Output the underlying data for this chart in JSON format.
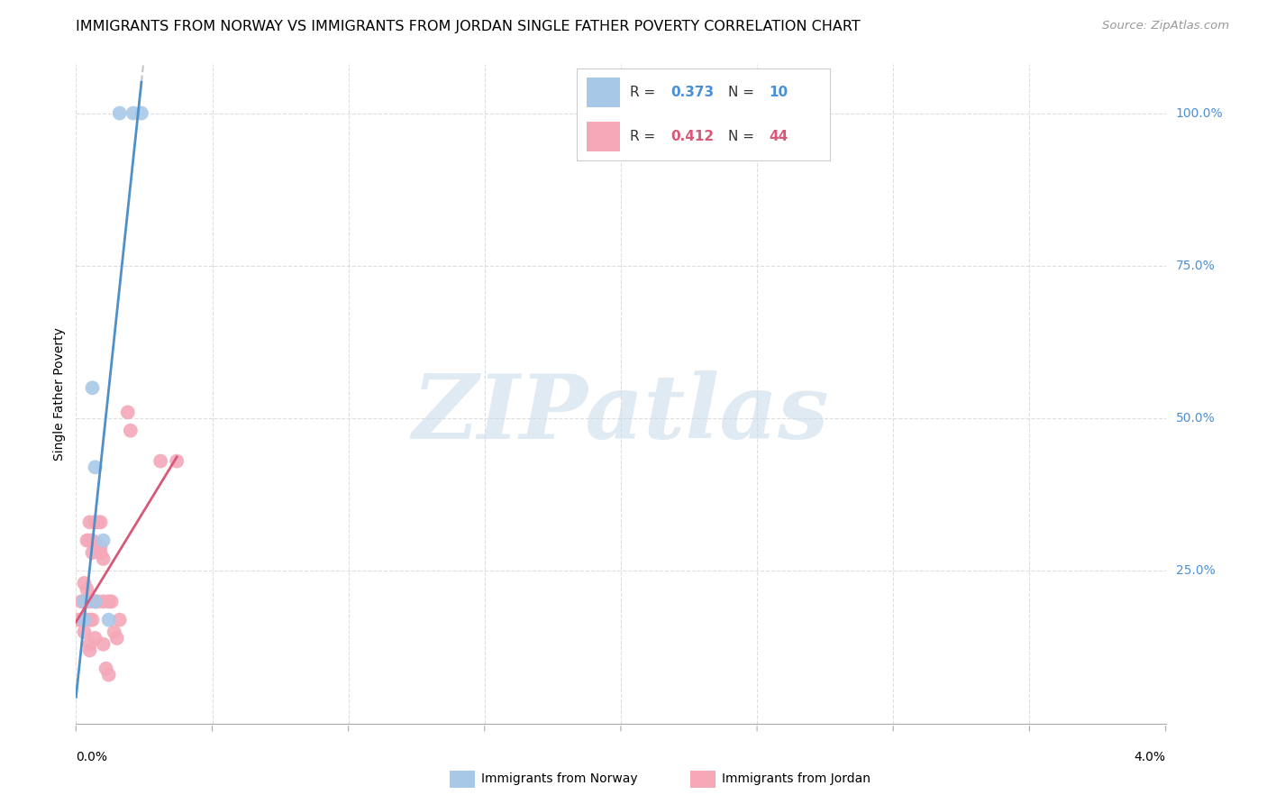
{
  "title": "IMMIGRANTS FROM NORWAY VS IMMIGRANTS FROM JORDAN SINGLE FATHER POVERTY CORRELATION CHART",
  "source": "Source: ZipAtlas.com",
  "ylabel": "Single Father Poverty",
  "norway_color": "#a8c8e8",
  "jordan_color": "#f4a8b8",
  "norway_line_color": "#5090c8",
  "jordan_line_color": "#d85878",
  "norway_points_x": [
    0.0003,
    0.0003,
    0.0006,
    0.0007,
    0.0007,
    0.001,
    0.0012,
    0.0016,
    0.0021,
    0.0024
  ],
  "norway_points_y": [
    0.17,
    0.2,
    0.55,
    0.42,
    0.2,
    0.3,
    0.17,
    1.0,
    1.0,
    1.0
  ],
  "jordan_points_x": [
    0.0001,
    0.0002,
    0.0002,
    0.0002,
    0.0003,
    0.0003,
    0.0003,
    0.0003,
    0.0003,
    0.0004,
    0.0004,
    0.0004,
    0.0004,
    0.0005,
    0.0005,
    0.0005,
    0.0005,
    0.0005,
    0.0005,
    0.0006,
    0.0006,
    0.0006,
    0.0007,
    0.0007,
    0.0007,
    0.0008,
    0.0008,
    0.0009,
    0.0009,
    0.0009,
    0.001,
    0.001,
    0.001,
    0.0011,
    0.0012,
    0.0012,
    0.0013,
    0.0014,
    0.0015,
    0.0016,
    0.0019,
    0.002,
    0.0031,
    0.0037
  ],
  "jordan_points_y": [
    0.17,
    0.17,
    0.2,
    0.17,
    0.15,
    0.2,
    0.23,
    0.17,
    0.17,
    0.22,
    0.3,
    0.17,
    0.2,
    0.33,
    0.3,
    0.12,
    0.13,
    0.2,
    0.17,
    0.3,
    0.17,
    0.28,
    0.14,
    0.2,
    0.33,
    0.33,
    0.2,
    0.29,
    0.28,
    0.33,
    0.2,
    0.13,
    0.27,
    0.09,
    0.2,
    0.08,
    0.2,
    0.15,
    0.14,
    0.17,
    0.51,
    0.48,
    0.43,
    0.43
  ],
  "xlim_pct": [
    0.0,
    4.0
  ],
  "ylim": [
    0.0,
    1.08
  ],
  "right_ytick_vals": [
    1.0,
    0.75,
    0.5,
    0.25
  ],
  "right_ytick_labels": [
    "100.0%",
    "75.0%",
    "50.0%",
    "25.0%"
  ],
  "grid_color": "#dddddd",
  "background_color": "#ffffff",
  "watermark_text": "ZIPatlas",
  "watermark_color": "#ccdcec",
  "norway_R": "0.373",
  "norway_N": "10",
  "jordan_R": "0.412",
  "jordan_N": "44",
  "legend_norway_label": "Immigrants from Norway",
  "legend_jordan_label": "Immigrants from Jordan",
  "title_fontsize": 11.5,
  "source_fontsize": 9.5,
  "tick_fontsize": 10,
  "ylabel_fontsize": 10
}
